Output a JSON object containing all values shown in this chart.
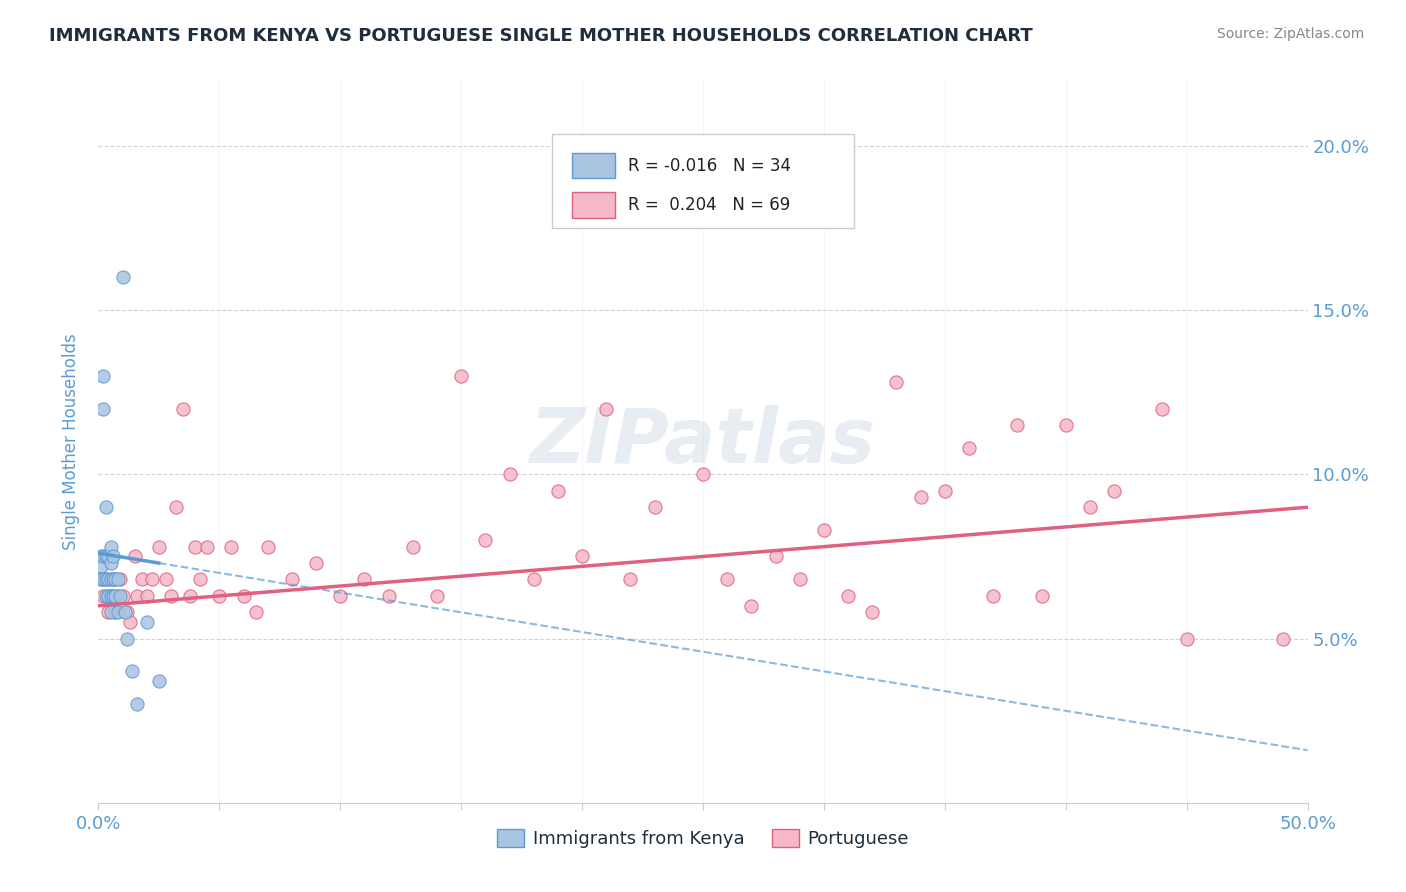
{
  "title": "IMMIGRANTS FROM KENYA VS PORTUGUESE SINGLE MOTHER HOUSEHOLDS CORRELATION CHART",
  "source": "Source: ZipAtlas.com",
  "ylabel": "Single Mother Households",
  "xlim": [
    0.0,
    0.5
  ],
  "ylim": [
    0.0,
    0.22
  ],
  "xtick_positions": [
    0.0,
    0.05,
    0.1,
    0.15,
    0.2,
    0.25,
    0.3,
    0.35,
    0.4,
    0.45,
    0.5
  ],
  "ytick_positions": [
    0.0,
    0.05,
    0.1,
    0.15,
    0.2
  ],
  "xtick_labels": [
    "0.0%",
    "",
    "",
    "",
    "",
    "",
    "",
    "",
    "",
    "",
    "50.0%"
  ],
  "ytick_labels": [
    "",
    "5.0%",
    "10.0%",
    "15.0%",
    "20.0%"
  ],
  "color_kenya": "#a8c4e0",
  "color_portuguese": "#f4b8c8",
  "color_line_kenya": "#5b9bd5",
  "color_line_portuguese": "#e06080",
  "color_axis": "#5b9bd5",
  "color_title": "#1f2d3d",
  "watermark": "ZIPatlas",
  "kenya_x": [
    0.001,
    0.001,
    0.001,
    0.002,
    0.002,
    0.002,
    0.002,
    0.003,
    0.003,
    0.003,
    0.003,
    0.004,
    0.004,
    0.004,
    0.005,
    0.005,
    0.005,
    0.005,
    0.005,
    0.006,
    0.006,
    0.006,
    0.007,
    0.007,
    0.008,
    0.008,
    0.009,
    0.01,
    0.011,
    0.012,
    0.014,
    0.016,
    0.02,
    0.025
  ],
  "kenya_y": [
    0.075,
    0.072,
    0.068,
    0.13,
    0.12,
    0.075,
    0.068,
    0.09,
    0.075,
    0.068,
    0.063,
    0.075,
    0.068,
    0.063,
    0.078,
    0.073,
    0.068,
    0.063,
    0.058,
    0.075,
    0.068,
    0.063,
    0.068,
    0.063,
    0.068,
    0.058,
    0.063,
    0.16,
    0.058,
    0.05,
    0.04,
    0.03,
    0.055,
    0.037
  ],
  "portuguese_x": [
    0.001,
    0.002,
    0.003,
    0.004,
    0.004,
    0.005,
    0.006,
    0.007,
    0.008,
    0.009,
    0.01,
    0.012,
    0.013,
    0.015,
    0.016,
    0.018,
    0.02,
    0.022,
    0.025,
    0.028,
    0.03,
    0.032,
    0.035,
    0.038,
    0.04,
    0.042,
    0.045,
    0.05,
    0.055,
    0.06,
    0.065,
    0.07,
    0.08,
    0.09,
    0.1,
    0.11,
    0.12,
    0.13,
    0.14,
    0.15,
    0.16,
    0.17,
    0.18,
    0.19,
    0.2,
    0.21,
    0.22,
    0.23,
    0.25,
    0.26,
    0.27,
    0.28,
    0.29,
    0.3,
    0.31,
    0.32,
    0.33,
    0.34,
    0.35,
    0.36,
    0.37,
    0.38,
    0.39,
    0.4,
    0.41,
    0.42,
    0.44,
    0.45,
    0.49
  ],
  "portuguese_y": [
    0.068,
    0.063,
    0.068,
    0.063,
    0.058,
    0.063,
    0.068,
    0.058,
    0.063,
    0.068,
    0.063,
    0.058,
    0.055,
    0.075,
    0.063,
    0.068,
    0.063,
    0.068,
    0.078,
    0.068,
    0.063,
    0.09,
    0.12,
    0.063,
    0.078,
    0.068,
    0.078,
    0.063,
    0.078,
    0.063,
    0.058,
    0.078,
    0.068,
    0.073,
    0.063,
    0.068,
    0.063,
    0.078,
    0.063,
    0.13,
    0.08,
    0.1,
    0.068,
    0.095,
    0.075,
    0.12,
    0.068,
    0.09,
    0.1,
    0.068,
    0.06,
    0.075,
    0.068,
    0.083,
    0.063,
    0.058,
    0.128,
    0.093,
    0.095,
    0.108,
    0.063,
    0.115,
    0.063,
    0.115,
    0.09,
    0.095,
    0.12,
    0.05,
    0.05
  ],
  "kenya_trend_intercept": 0.076,
  "kenya_trend_slope": -0.12,
  "portuguese_trend_intercept": 0.06,
  "portuguese_trend_slope": 0.06
}
